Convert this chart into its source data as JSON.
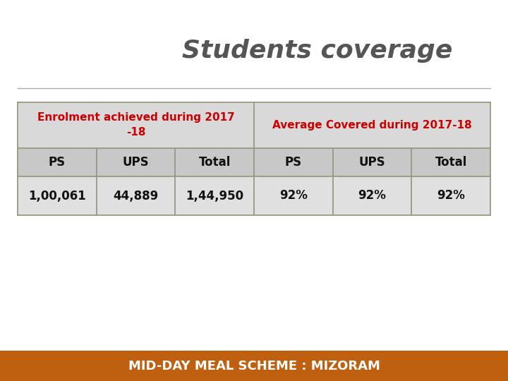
{
  "title": "Students coverage",
  "title_color": "#555555",
  "title_fontsize": 26,
  "title_style": "italic",
  "title_weight": "bold",
  "header1_text": "Enrolment achieved during 2017\n-18",
  "header2_text": "Average Covered during 2017-18",
  "header_color": "#cc0000",
  "header_bg": "#d9d9d9",
  "col_headers": [
    "PS",
    "UPS",
    "Total",
    "PS",
    "UPS",
    "Total"
  ],
  "col_header_bg": "#c8c8c8",
  "col_header_color": "#111111",
  "data_row": [
    "1,00,061",
    "44,889",
    "1,44,950",
    "92%",
    "92%",
    "92%"
  ],
  "data_bg": "#e0e0e0",
  "data_color": "#111111",
  "footer_text": "MID-DAY MEAL SCHEME : MIZORAM",
  "footer_bg": "#bf6010",
  "footer_color": "#ffffff",
  "divider_color": "#aaaaaa",
  "table_border_color": "#999980",
  "bg_color": "#ffffff"
}
